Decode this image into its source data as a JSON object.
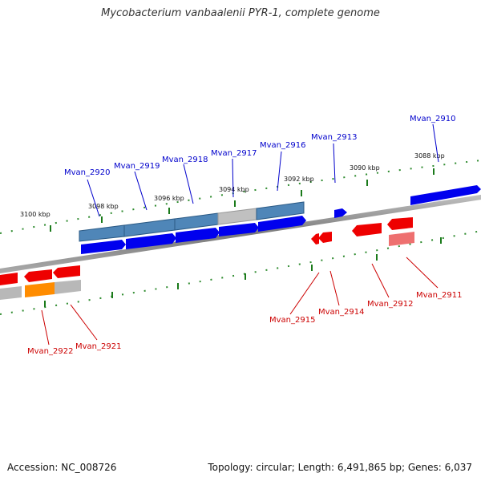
{
  "title": "Mycobacterium vanbaalenii PYR-1, complete genome",
  "footer": {
    "accession": "Accession: NC_008726",
    "topology": "Topology: circular; Length: 6,491,865 bp; Genes: 6,037"
  },
  "colors": {
    "forward_gene": "#0000ee",
    "reverse_gene": "#ee0000",
    "operon_blue": "#4f86b8",
    "operon_grey": "#b8b8b8",
    "orange_gene": "#ff8c00",
    "pink_gene": "#ee7070",
    "label_blue": "#0000cc",
    "label_red": "#cc0000",
    "tick_green": "#1a7a1a",
    "backbone": "#888888"
  },
  "kbp_labels": [
    "3100 kbp",
    "3098 kbp",
    "3096 kbp",
    "3094 kbp",
    "3092 kbp",
    "3090 kbp",
    "3088 kbp"
  ],
  "forward_labels": [
    "Mvan_2920",
    "Mvan_2919",
    "Mvan_2918",
    "Mvan_2917",
    "Mvan_2916",
    "Mvan_2913",
    "Mvan_2910"
  ],
  "reverse_labels": [
    "Mvan_2922",
    "Mvan_2921",
    "Mvan_2915",
    "Mvan_2914",
    "Mvan_2912",
    "Mvan_2911"
  ]
}
